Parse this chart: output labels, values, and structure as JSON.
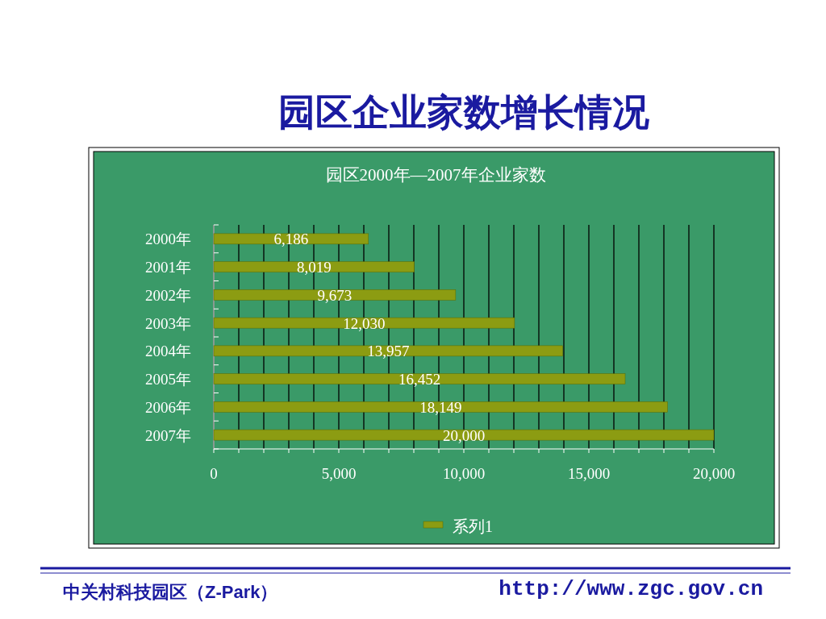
{
  "chart_data": {
    "type": "bar",
    "orientation": "horizontal",
    "title": "园区企业家数增长情况",
    "subtitle": "园区2000年—2007年企业家数",
    "categories": [
      "2000年",
      "2001年",
      "2002年",
      "2003年",
      "2004年",
      "2005年",
      "2006年",
      "2007年"
    ],
    "series": [
      {
        "name": "系列1",
        "color": "#8c9c12",
        "values": [
          6186,
          8019,
          9673,
          12030,
          13957,
          16452,
          18149,
          20000
        ],
        "value_labels": [
          "6,186",
          "8,019",
          "9,673",
          "12,030",
          "13,957",
          "16,452",
          "18,149",
          "20,000"
        ]
      }
    ],
    "xlim": [
      0,
      20000
    ],
    "xticks": [
      0,
      {
        "value": 1000,
        "label": null
      },
      {
        "value": 2000,
        "label": null
      },
      {
        "value": 3000,
        "label": null
      },
      {
        "value": 4000,
        "label": null
      },
      {
        "value": 5000,
        "label": "5,000"
      },
      {
        "value": 6000,
        "label": null
      },
      {
        "value": 7000,
        "label": null
      },
      {
        "value": 8000,
        "label": null
      },
      {
        "value": 9000,
        "label": null
      },
      {
        "value": 10000,
        "label": "10,000"
      },
      {
        "value": 11000,
        "label": null
      },
      {
        "value": 12000,
        "label": null
      },
      {
        "value": 13000,
        "label": null
      },
      {
        "value": 14000,
        "label": null
      },
      {
        "value": 15000,
        "label": "15,000"
      },
      {
        "value": 16000,
        "label": null
      },
      {
        "value": 17000,
        "label": null
      },
      {
        "value": 18000,
        "label": null
      },
      {
        "value": 19000,
        "label": null
      },
      {
        "value": 20000,
        "label": "20,000"
      }
    ],
    "grid": "x",
    "legend": "bottom",
    "annotations": [
      "中关村科技园区（Z-Park）",
      "http://www.zgc.gov.cn"
    ]
  }
}
